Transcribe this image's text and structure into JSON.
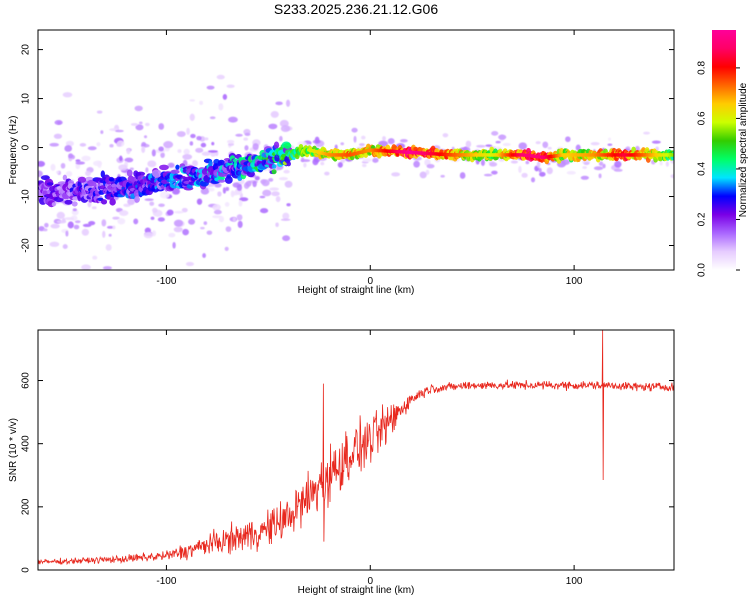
{
  "title": "S233.2025.236.21.12.G06",
  "chart_data": [
    {
      "type": "heatmap",
      "title": "",
      "xlabel": "Height of straight line (km)",
      "ylabel": "Frequency (Hz)",
      "xlim": [
        -163,
        149
      ],
      "ylim": [
        -25,
        24
      ],
      "xticks": [
        -100,
        0,
        100
      ],
      "yticks": [
        -20,
        -10,
        0,
        10,
        20
      ],
      "colorbar": {
        "label": "Normalized spectral amplitude",
        "range": [
          0,
          0.95
        ],
        "ticks": [
          "0.0",
          "0.2",
          "0.4",
          "0.6",
          "0.8"
        ],
        "tick_values": [
          0,
          0.2,
          0.4,
          0.6,
          0.8
        ],
        "colors": [
          "#ffffff",
          "#e6ccff",
          "#aa66ff",
          "#7a00e6",
          "#0000ff",
          "#00e5ff",
          "#00ff66",
          "#33cc00",
          "#ccff00",
          "#ffcc00",
          "#ff6600",
          "#ff0000",
          "#ff0066",
          "#ff0099"
        ]
      },
      "ridge": {
        "x": [
          -163,
          -140,
          -120,
          -100,
          -80,
          -60,
          -45,
          -30,
          -20,
          -10,
          0,
          20,
          40,
          60,
          75,
          85,
          95,
          110,
          125,
          149
        ],
        "freq": [
          -9,
          -9,
          -8,
          -7,
          -5.5,
          -3.5,
          -2,
          -0.5,
          -1.5,
          -1.5,
          -0.5,
          -1,
          -1.5,
          -1.5,
          -1.5,
          -2,
          -1.5,
          -1.5,
          -1.5,
          -1.5
        ],
        "amp": [
          0.22,
          0.25,
          0.28,
          0.3,
          0.34,
          0.38,
          0.45,
          0.6,
          0.7,
          0.75,
          0.7,
          0.95,
          0.75,
          0.6,
          0.9,
          0.9,
          0.65,
          0.7,
          0.85,
          0.55
        ]
      }
    },
    {
      "type": "line",
      "title": "",
      "xlabel": "Height of straight line (km)",
      "ylabel": "SNR (10 * v/v)",
      "xlim": [
        -163,
        149
      ],
      "ylim": [
        0,
        760
      ],
      "xticks": [
        -100,
        0,
        100
      ],
      "yticks": [
        0,
        200,
        400,
        600
      ],
      "series": [
        {
          "name": "SNR",
          "color": "#e8281e",
          "x": [
            -163,
            -140,
            -120,
            -100,
            -90,
            -80,
            -70,
            -60,
            -50,
            -40,
            -35,
            -30,
            -25,
            -20,
            -15,
            -10,
            -5,
            0,
            5,
            10,
            15,
            20,
            25,
            30,
            40,
            50,
            60,
            80,
            100,
            110,
            115,
            120,
            130,
            149
          ],
          "y": [
            25,
            30,
            35,
            45,
            60,
            80,
            95,
            110,
            130,
            170,
            200,
            230,
            270,
            300,
            330,
            370,
            390,
            410,
            440,
            470,
            510,
            540,
            560,
            575,
            580,
            585,
            585,
            585,
            585,
            585,
            585,
            585,
            580,
            580
          ],
          "amplitude": [
            12,
            14,
            18,
            25,
            40,
            50,
            60,
            75,
            85,
            95,
            110,
            130,
            130,
            140,
            130,
            130,
            120,
            120,
            100,
            90,
            60,
            30,
            25,
            22,
            20,
            20,
            20,
            20,
            20,
            20,
            20,
            20,
            20,
            20
          ]
        }
      ],
      "spikes": [
        {
          "x": -23,
          "high": 590,
          "low": 90
        },
        {
          "x": 114,
          "high": 760,
          "low": 285
        }
      ]
    }
  ]
}
